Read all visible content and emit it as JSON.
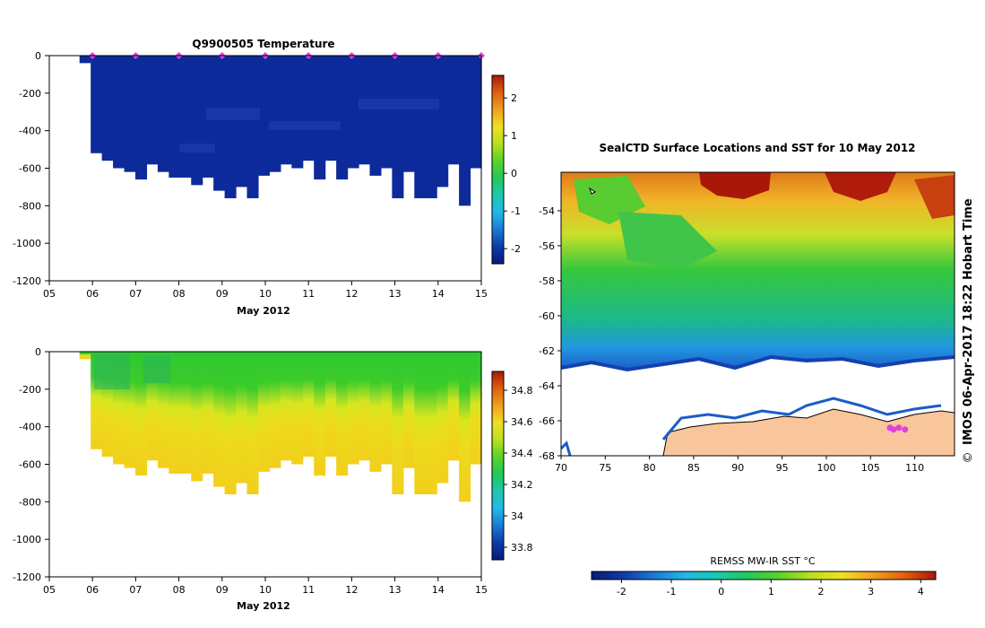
{
  "colors": {
    "land": "#f8c69a",
    "tag_marker": "#e040e0",
    "deep_blue": "#0a2a9a"
  },
  "chart_data": [
    {
      "type": "heatmap",
      "title": "Q9900505  Temperature",
      "xlabel": "May 2012",
      "ylabel": "",
      "x_ticks": [
        "05",
        "06",
        "07",
        "08",
        "09",
        "10",
        "11",
        "12",
        "13",
        "14",
        "15"
      ],
      "xlim": [
        5,
        15
      ],
      "y_ticks": [
        0,
        -200,
        -400,
        -600,
        -800,
        -1000,
        -1200
      ],
      "ylim": [
        -1200,
        0
      ],
      "profile_start_day": 5.7,
      "profile_end_day": 15.0,
      "profile_max_depth": [
        -40,
        -520,
        -560,
        -600,
        -620,
        -660,
        -580,
        -620,
        -650,
        -650,
        -690,
        -650,
        -720,
        -760,
        -700,
        -760,
        -640,
        -620,
        -580,
        -600,
        -560,
        -660,
        -560,
        -660,
        -600,
        -580,
        -640,
        -600,
        -760,
        -620,
        -760,
        -760,
        -700,
        -580,
        -800,
        -600
      ],
      "colorbar": {
        "ticks": [
          2,
          1,
          0,
          -1,
          -2
        ],
        "range": [
          -2.4,
          2.6
        ],
        "stops": [
          "#081a7a",
          "#0d3aa8",
          "#1a7ad8",
          "#22b8e8",
          "#1cc8b0",
          "#22c85a",
          "#5ad22a",
          "#b8e020",
          "#f0e020",
          "#f0a020",
          "#e06010",
          "#a81808"
        ]
      },
      "field_description": "uniform near-freezing water, values about -1.8 to -1.5 C",
      "tag_days": [
        6,
        7,
        8,
        9,
        10,
        11,
        12,
        13,
        14,
        15
      ]
    },
    {
      "type": "heatmap",
      "title": "",
      "xlabel": "May 2012",
      "ylabel": "",
      "x_ticks": [
        "05",
        "06",
        "07",
        "08",
        "09",
        "10",
        "11",
        "12",
        "13",
        "14",
        "15"
      ],
      "xlim": [
        5,
        15
      ],
      "y_ticks": [
        0,
        -200,
        -400,
        -600,
        -800,
        -1000,
        -1200
      ],
      "ylim": [
        -1200,
        0
      ],
      "profile_start_day": 5.7,
      "profile_end_day": 15.0,
      "profile_max_depth": [
        -40,
        -520,
        -560,
        -600,
        -620,
        -660,
        -580,
        -620,
        -650,
        -650,
        -690,
        -650,
        -720,
        -760,
        -700,
        -760,
        -640,
        -620,
        -580,
        -600,
        -560,
        -660,
        -560,
        -660,
        -600,
        -580,
        -640,
        -600,
        -760,
        -620,
        -760,
        -760,
        -700,
        -580,
        -800,
        -600
      ],
      "colorbar": {
        "ticks": [
          "34.8",
          "34.6",
          "34.4",
          "34.2",
          "34",
          "33.8"
        ],
        "tick_values": [
          34.8,
          34.6,
          34.4,
          34.2,
          34.0,
          33.8
        ],
        "range": [
          33.72,
          34.92
        ],
        "stops": [
          "#081a7a",
          "#0d3aa8",
          "#1a7ad8",
          "#22b8e8",
          "#1cc8b0",
          "#22c85a",
          "#5ad22a",
          "#b8e020",
          "#f0e020",
          "#f0a020",
          "#e06010",
          "#a81808"
        ]
      },
      "field_description": "salinity about 34.3 near surface increasing to about 34.55-34.65 below 450 m"
    },
    {
      "type": "heatmap",
      "title": "SealCTD Surface Locations and SST for 10 May 2012",
      "xlabel": "",
      "ylabel": "",
      "x_ticks": [
        "70",
        "75",
        "80",
        "85",
        "90",
        "95",
        "100",
        "105",
        "110"
      ],
      "xlim": [
        70,
        114.5
      ],
      "y_ticks": [
        "-54",
        "-56",
        "-58",
        "-60",
        "-62",
        "-64",
        "-66",
        "-68"
      ],
      "ylim": [
        -68,
        -51.8
      ],
      "colorbar": {
        "label": "REMSS MW-IR SST °C",
        "ticks": [
          "-2",
          "-1",
          "0",
          "1",
          "2",
          "3",
          "4"
        ],
        "tick_values": [
          -2,
          -1,
          0,
          1,
          2,
          3,
          4
        ],
        "range": [
          -2.6,
          4.3
        ],
        "stops": [
          "#081a7a",
          "#0d3aa8",
          "#1a7ad8",
          "#22b8e8",
          "#1cc8b0",
          "#22c85a",
          "#5ad22a",
          "#b8e020",
          "#f0e020",
          "#f0a020",
          "#e06010",
          "#a81808"
        ]
      },
      "seal_locations": [
        [
          107.2,
          -66.4
        ],
        [
          107.6,
          -66.5
        ],
        [
          108.2,
          -66.4
        ],
        [
          108.9,
          -66.5
        ]
      ]
    }
  ],
  "credit": "IMOS 06-Apr-2017 18:22 Hobart Time",
  "copyright_symbol": "©"
}
